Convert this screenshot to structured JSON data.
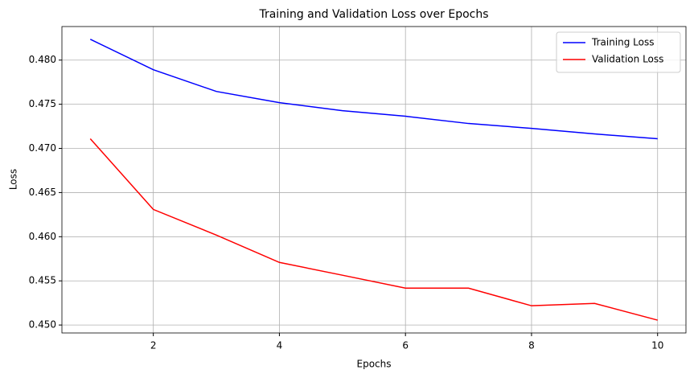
{
  "chart_data": {
    "type": "line",
    "title": "Training and Validation Loss over Epochs",
    "x_label": "Epochs",
    "y_label": "Loss",
    "x": [
      1,
      2,
      3,
      4,
      5,
      6,
      7,
      8,
      9,
      10
    ],
    "series": [
      {
        "name": "Training Loss",
        "color": "#0000ff",
        "values": [
          0.48236,
          0.47891,
          0.47645,
          0.47518,
          0.47427,
          0.47364,
          0.47282,
          0.47227,
          0.47164,
          0.47109
        ]
      },
      {
        "name": "Validation Loss",
        "color": "#ff0000",
        "values": [
          0.47109,
          0.46309,
          0.46018,
          0.45709,
          0.45564,
          0.45418,
          0.45418,
          0.45218,
          0.45245,
          0.45055
        ]
      }
    ],
    "xlim": [
      0.55,
      10.45
    ],
    "xticks": [
      2,
      4,
      6,
      8,
      10
    ],
    "ylim": [
      0.4491,
      0.4838
    ],
    "yticks": [
      {
        "value": 0.45,
        "label": "0.450"
      },
      {
        "value": 0.455,
        "label": "0.455"
      },
      {
        "value": 0.46,
        "label": "0.460"
      },
      {
        "value": 0.465,
        "label": "0.465"
      },
      {
        "value": 0.47,
        "label": "0.470"
      },
      {
        "value": 0.475,
        "label": "0.475"
      },
      {
        "value": 0.48,
        "label": "0.480"
      }
    ],
    "grid": true,
    "legend": "upper-right"
  }
}
